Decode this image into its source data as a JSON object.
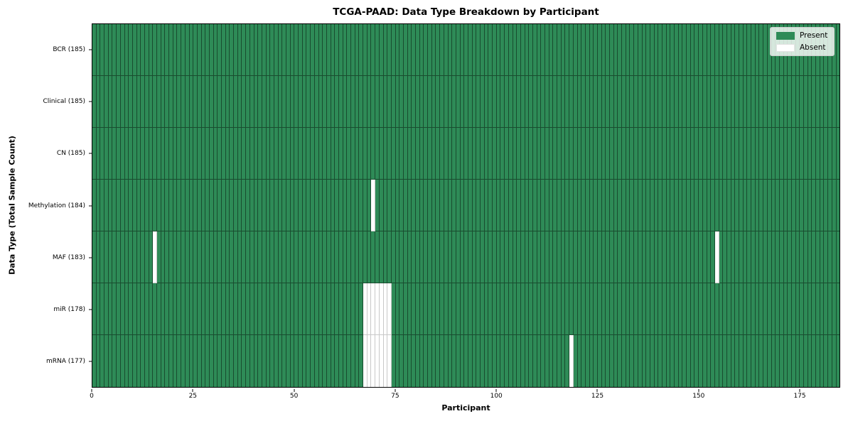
{
  "chart_data": {
    "type": "heatmap",
    "title": "TCGA-PAAD: Data Type Breakdown by Participant",
    "xlabel": "Participant",
    "ylabel": "Data Type (Total Sample Count)",
    "n_participants": 185,
    "xlim": [
      0,
      185
    ],
    "x_ticks": [
      0,
      25,
      50,
      75,
      100,
      125,
      150,
      175
    ],
    "rows": [
      {
        "key": "BCR",
        "label": "BCR (185)",
        "total": 185,
        "absent_participants": []
      },
      {
        "key": "Clinical",
        "label": "Clinical (185)",
        "total": 185,
        "absent_participants": []
      },
      {
        "key": "CN",
        "label": "CN (185)",
        "total": 185,
        "absent_participants": []
      },
      {
        "key": "Methylation",
        "label": "Methylation (184)",
        "total": 184,
        "absent_participants": [
          69
        ]
      },
      {
        "key": "MAF",
        "label": "MAF (183)",
        "total": 183,
        "absent_participants": [
          15,
          154
        ]
      },
      {
        "key": "miR",
        "label": "miR (178)",
        "total": 178,
        "absent_participants": [
          67,
          68,
          69,
          70,
          71,
          72,
          73
        ]
      },
      {
        "key": "mRNA",
        "label": "mRNA (177)",
        "total": 177,
        "absent_participants": [
          67,
          68,
          69,
          70,
          71,
          72,
          73,
          118
        ]
      }
    ],
    "legend": [
      {
        "label": "Present",
        "color": "#2e8b57"
      },
      {
        "label": "Absent",
        "color": "#ffffff"
      }
    ],
    "colors": {
      "present": "#2e8b57",
      "absent": "#ffffff",
      "present_edge": "rgba(0,0,0,0.45)",
      "absent_edge": "#c8c8c8",
      "spine": "#000000"
    }
  }
}
